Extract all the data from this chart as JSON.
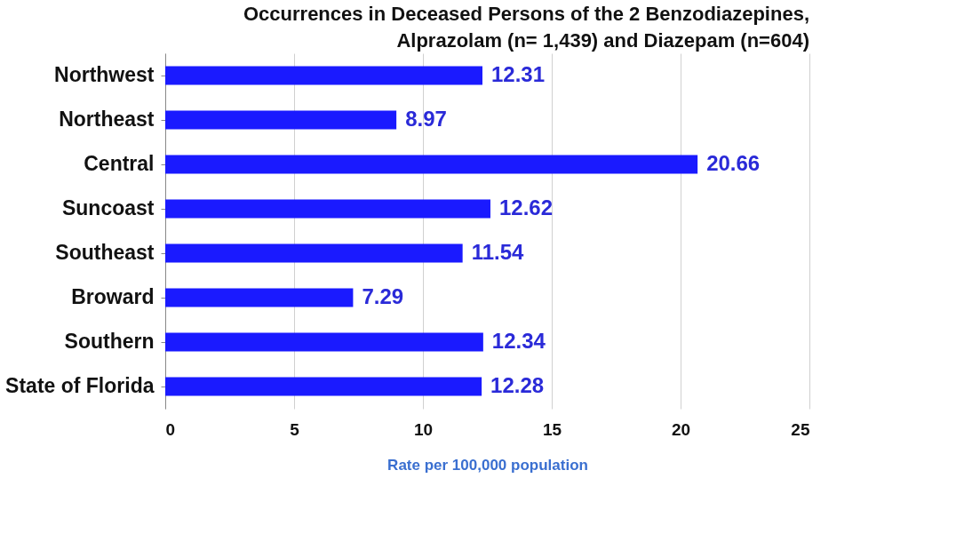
{
  "chart_data": {
    "type": "bar",
    "orientation": "horizontal",
    "title": "Occurrences in Deceased Persons of the 2 Benzodiazepines, Alprazolam (n= 1,439) and Diazepam (n=604)",
    "xlabel": "Rate per 100,000 population",
    "categories": [
      "Northwest",
      "Northeast",
      "Central",
      "Suncoast",
      "Southeast",
      "Broward",
      "Southern",
      "State of Florida"
    ],
    "values": [
      12.31,
      8.97,
      20.66,
      12.62,
      11.54,
      7.29,
      12.34,
      12.28
    ],
    "color": "#1a1aff",
    "xlim": [
      0,
      25
    ],
    "xticks": [
      0,
      5,
      10,
      15,
      20,
      25
    ],
    "grid": "x",
    "data_labels": true
  }
}
